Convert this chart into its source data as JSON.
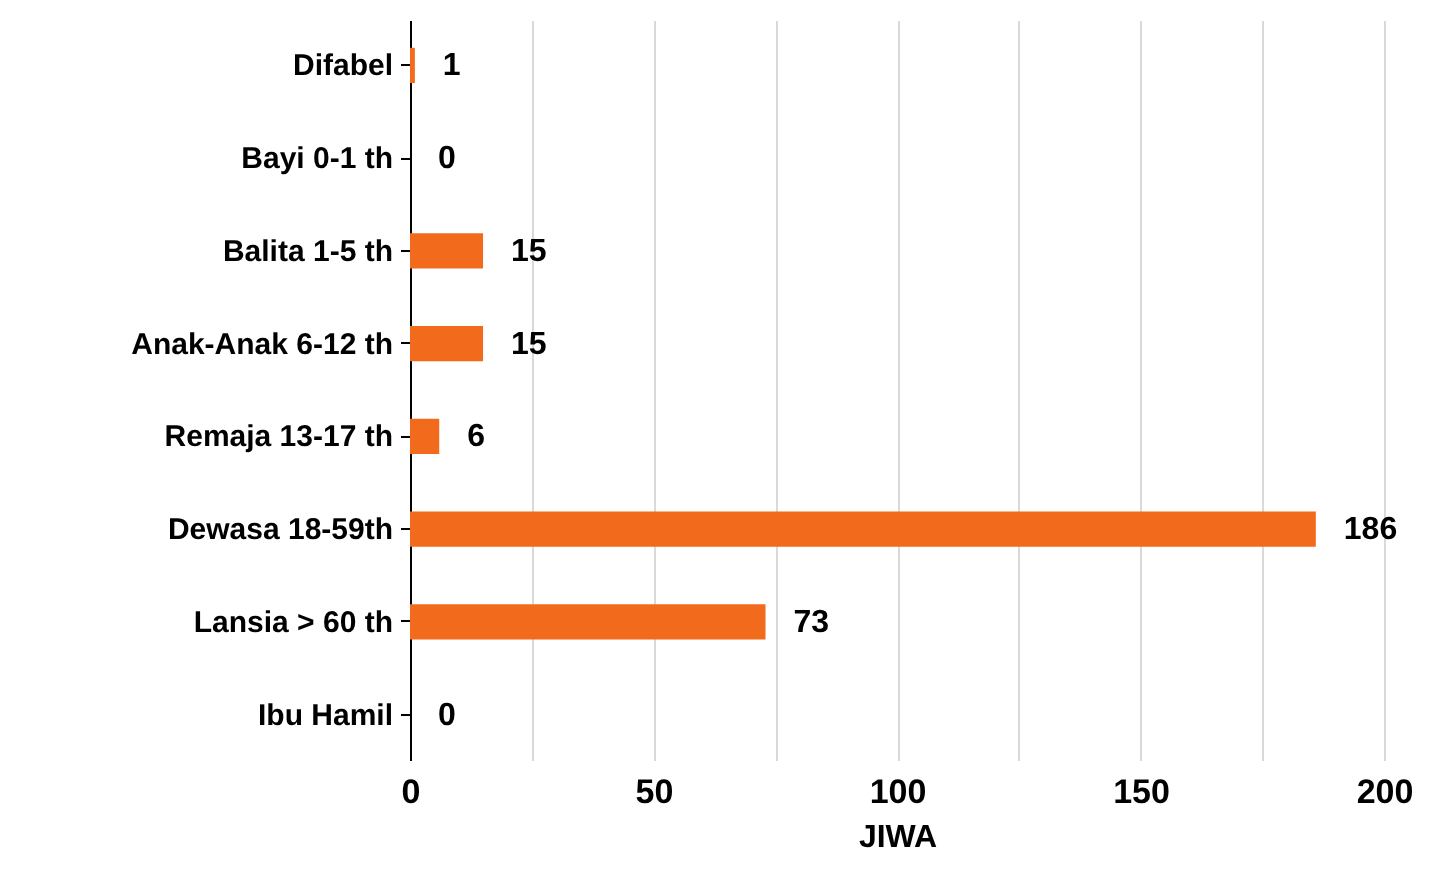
{
  "chart_data": {
    "type": "bar",
    "orientation": "horizontal",
    "xlabel": "JIWA",
    "categories": [
      "Difabel",
      "Bayi 0-1 th",
      "Balita 1-5 th",
      "Anak-Anak 6-12 th",
      "Remaja 13-17 th",
      "Dewasa 18-59th",
      "Lansia > 60 th",
      "Ibu Hamil"
    ],
    "values": [
      1,
      0,
      15,
      15,
      6,
      186,
      73,
      0
    ],
    "color": "#f26b1d",
    "xlim": [
      0,
      200
    ],
    "xticks": [
      0,
      {
        "value": 25,
        "label": null
      },
      50,
      {
        "value": 75,
        "label": null
      },
      100,
      {
        "value": 125,
        "label": null
      },
      150,
      {
        "value": 175,
        "label": null
      },
      200
    ],
    "grid": "x",
    "data_labels": true
  }
}
